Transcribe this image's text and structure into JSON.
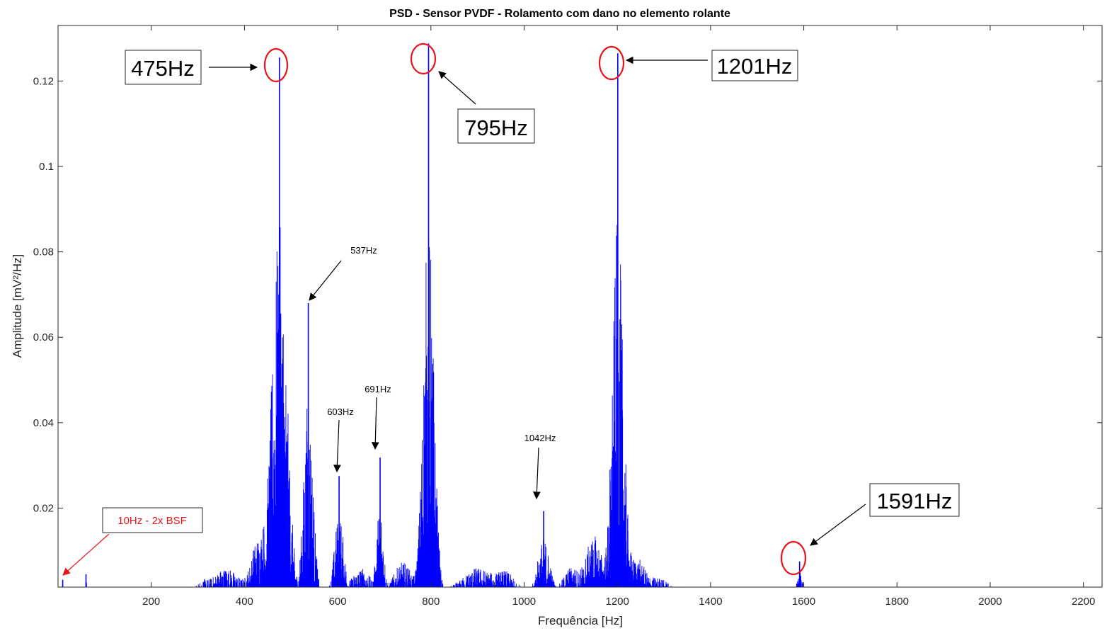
{
  "chart_data": {
    "type": "line",
    "title": "PSD - Sensor PVDF - Rolamento com dano no elemento rolante",
    "xlabel": "Frequência [Hz]",
    "ylabel": "Amplitude [mV²/Hz]",
    "xlim": [
      0,
      2240
    ],
    "ylim": [
      0.0015,
      0.133
    ],
    "x_ticks": [
      200,
      400,
      600,
      800,
      1000,
      1200,
      1400,
      1600,
      1800,
      2000,
      2200
    ],
    "y_ticks": [
      0.02,
      0.04,
      0.06,
      0.08,
      0.1,
      0.12
    ],
    "y_tick_labels": [
      "0.02",
      "0.04",
      "0.06",
      "0.08",
      "0.1",
      "0.12"
    ],
    "grid": false,
    "legend": "none",
    "line_color": "#0000ff",
    "series": [
      {
        "peaks": [
          {
            "x": 10,
            "y": 0.0032
          },
          {
            "x": 60,
            "y": 0.0045
          },
          {
            "x": 475,
            "y": 0.1255
          },
          {
            "x": 537,
            "y": 0.068
          },
          {
            "x": 603,
            "y": 0.0275
          },
          {
            "x": 691,
            "y": 0.0318
          },
          {
            "x": 795,
            "y": 0.1288
          },
          {
            "x": 1042,
            "y": 0.0193
          },
          {
            "x": 1201,
            "y": 0.1265
          },
          {
            "x": 1591,
            "y": 0.0075
          }
        ]
      }
    ],
    "annotations": [
      {
        "text": "475Hz",
        "x": 475,
        "y": 0.1255,
        "style": "boxed-large",
        "circled": true
      },
      {
        "text": "795Hz",
        "x": 795,
        "y": 0.1288,
        "style": "boxed-large",
        "circled": true
      },
      {
        "text": "1201Hz",
        "x": 1201,
        "y": 0.1265,
        "style": "boxed-large",
        "circled": true
      },
      {
        "text": "1591Hz",
        "x": 1591,
        "y": 0.0075,
        "style": "boxed-large",
        "circled": true
      },
      {
        "text": "537Hz",
        "x": 537,
        "y": 0.068,
        "style": "small"
      },
      {
        "text": "603Hz",
        "x": 603,
        "y": 0.0275,
        "style": "small"
      },
      {
        "text": "691Hz",
        "x": 691,
        "y": 0.0318,
        "style": "small"
      },
      {
        "text": "1042Hz",
        "x": 1042,
        "y": 0.0193,
        "style": "small"
      },
      {
        "text": "10Hz - 2x BSF",
        "x": 10,
        "y": 0.0032,
        "style": "boxed-red"
      }
    ],
    "colors": {
      "signal": "#0000ff",
      "annotation_red": "#e8141c",
      "axis": "#262626"
    }
  }
}
